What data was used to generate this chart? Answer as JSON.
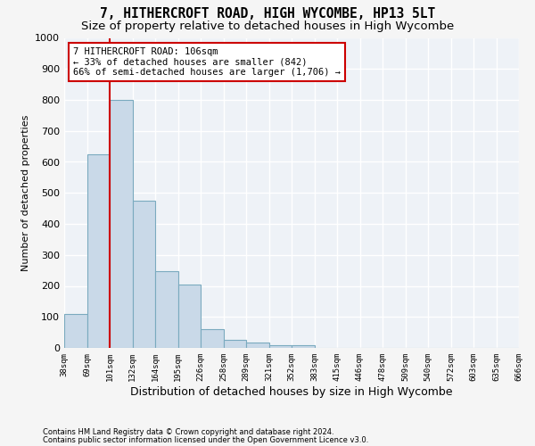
{
  "title1": "7, HITHERCROFT ROAD, HIGH WYCOMBE, HP13 5LT",
  "title2": "Size of property relative to detached houses in High Wycombe",
  "xlabel": "Distribution of detached houses by size in High Wycombe",
  "ylabel": "Number of detached properties",
  "footer1": "Contains HM Land Registry data © Crown copyright and database right 2024.",
  "footer2": "Contains public sector information licensed under the Open Government Licence v3.0.",
  "bin_labels": [
    "38sqm",
    "69sqm",
    "101sqm",
    "132sqm",
    "164sqm",
    "195sqm",
    "226sqm",
    "258sqm",
    "289sqm",
    "321sqm",
    "352sqm",
    "383sqm",
    "415sqm",
    "446sqm",
    "478sqm",
    "509sqm",
    "540sqm",
    "572sqm",
    "603sqm",
    "635sqm",
    "666sqm"
  ],
  "bar_values": [
    110,
    625,
    800,
    475,
    248,
    203,
    60,
    25,
    18,
    10,
    10,
    0,
    0,
    0,
    0,
    0,
    0,
    0,
    0,
    0
  ],
  "bar_color": "#c9d9e8",
  "bar_edgecolor": "#7aaabf",
  "vline_x": 2,
  "vline_color": "#cc0000",
  "annotation_line1": "7 HITHERCROFT ROAD: 106sqm",
  "annotation_line2": "← 33% of detached houses are smaller (842)",
  "annotation_line3": "66% of semi-detached houses are larger (1,706) →",
  "annotation_box_color": "#ffffff",
  "annotation_box_edgecolor": "#cc0000",
  "ylim": [
    0,
    1000
  ],
  "yticks": [
    0,
    100,
    200,
    300,
    400,
    500,
    600,
    700,
    800,
    900,
    1000
  ],
  "background_color": "#eef2f7",
  "grid_color": "#ffffff",
  "fig_facecolor": "#f5f5f5",
  "title1_fontsize": 10.5,
  "title2_fontsize": 9.5,
  "xlabel_fontsize": 9,
  "ylabel_fontsize": 8
}
